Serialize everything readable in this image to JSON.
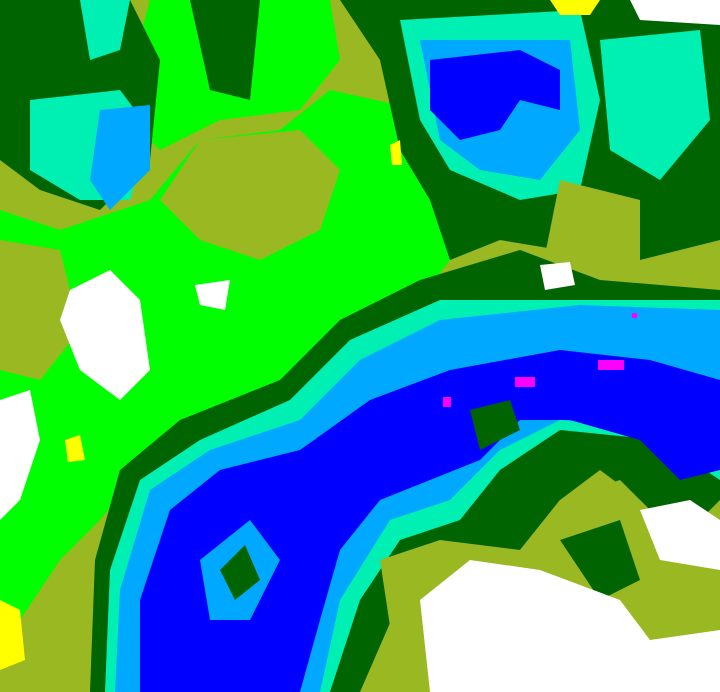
{
  "map": {
    "type": "classified raster",
    "colors": {
      "white": "#ffffff",
      "yellow": "#ffff00",
      "olive": "#99b822",
      "green": "#00ff00",
      "dark_green": "#006400",
      "aquamarine": "#00f0b4",
      "light_blue": "#00a8ff",
      "blue": "#0000ff",
      "magenta": "#ff00ff"
    }
  }
}
